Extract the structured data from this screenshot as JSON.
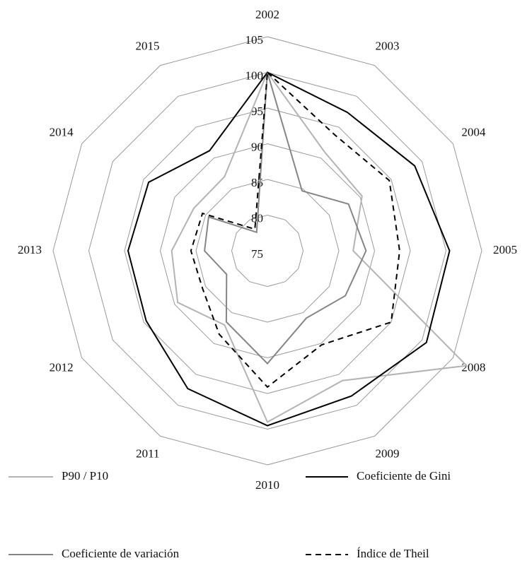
{
  "chart_data": {
    "type": "radar",
    "categories": [
      "2002",
      "2003",
      "2004",
      "2005",
      "2008",
      "2009",
      "2010",
      "2011",
      "2012",
      "2013",
      "2014",
      "2015"
    ],
    "rlim": [
      75,
      105
    ],
    "rticks": [
      75,
      80,
      85,
      90,
      95,
      100,
      105
    ],
    "grid": true,
    "legend": "bottom",
    "series": [
      {
        "name": "P90 / P10",
        "color": "#b3b3b3",
        "dash": false,
        "values": [
          100,
          91,
          90.3,
          87,
          107.2,
          96,
          99,
          87,
          89.5,
          88.4,
          86.9,
          87
        ]
      },
      {
        "name": "Coeficiente de Gini",
        "color": "#000000",
        "dash": false,
        "values": [
          100,
          97.4,
          98.8,
          100.5,
          100.7,
          98.5,
          99.5,
          97.3,
          94.6,
          94.5,
          94.2,
          91.2
        ]
      },
      {
        "name": "Coeficiente de variación",
        "color": "#858585",
        "dash": false,
        "values": [
          100,
          84.7,
          88.1,
          88.8,
          87.6,
          85.9,
          90.8,
          86.5,
          81.6,
          83.8,
          84.5,
          78
        ]
      },
      {
        "name": "Índice de Theil",
        "color": "#000000",
        "dash": true,
        "values": [
          100,
          93.8,
          94.7,
          93.5,
          95,
          90.2,
          94.1,
          88.5,
          85.5,
          85.7,
          85.5,
          78.5
        ]
      }
    ]
  }
}
